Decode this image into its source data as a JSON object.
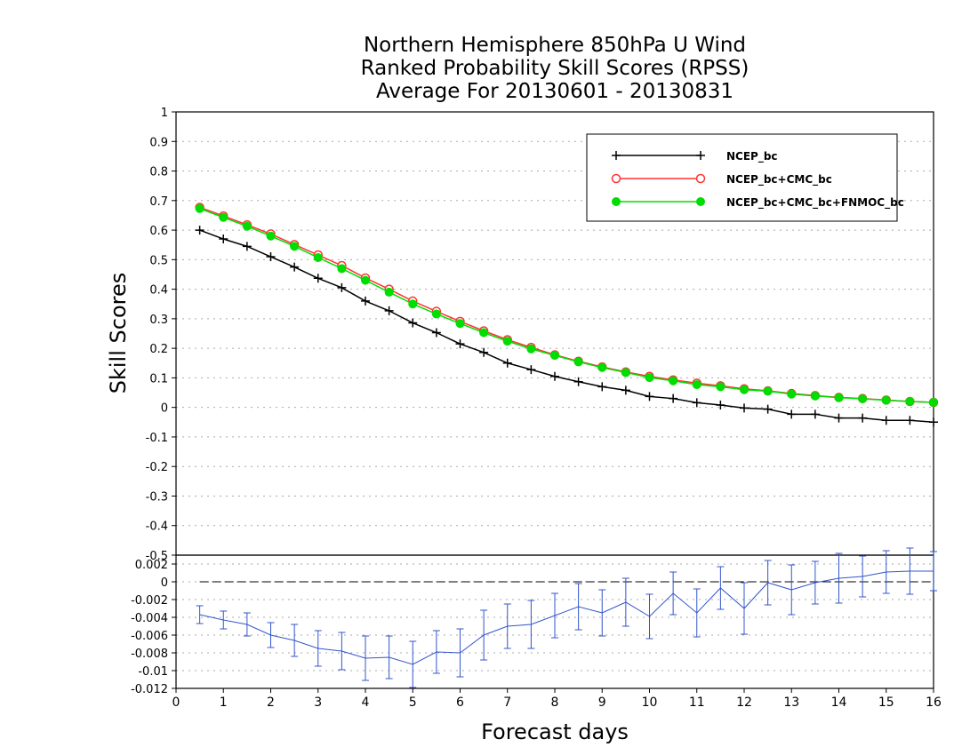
{
  "title": {
    "line1": "Northern Hemisphere 850hPa U Wind",
    "line2": "Ranked Probability Skill Scores (RPSS)",
    "line3": "Average For 20130601 - 20130831"
  },
  "xlabel": "Forecast days",
  "ylabel": "Skill Scores",
  "chart_data": [
    {
      "type": "line",
      "xlim": [
        0,
        16
      ],
      "ylim": [
        -0.5,
        1.0
      ],
      "x_ticks": [
        "0",
        "1",
        "2",
        "3",
        "4",
        "5",
        "6",
        "7",
        "8",
        "9",
        "10",
        "11",
        "12",
        "13",
        "14",
        "15",
        "16"
      ],
      "y_ticks": [
        "-0.5",
        "-0.4",
        "-0.3",
        "-0.2",
        "-0.1",
        "0",
        "0.1",
        "0.2",
        "0.3",
        "0.4",
        "0.5",
        "0.6",
        "0.7",
        "0.8",
        "0.9",
        "1"
      ],
      "grid": true,
      "legend_position": "top-right",
      "x": [
        0.5,
        1,
        1.5,
        2,
        2.5,
        3,
        3.5,
        4,
        4.5,
        5,
        5.5,
        6,
        6.5,
        7,
        7.5,
        8,
        8.5,
        9,
        9.5,
        10,
        10.5,
        11,
        11.5,
        12,
        12.5,
        13,
        13.5,
        14,
        14.5,
        15,
        15.5,
        16
      ],
      "series": [
        {
          "name": "NCEP_bc",
          "color": "#000000",
          "marker": "plus",
          "values": [
            0.6,
            0.57,
            0.545,
            0.51,
            0.475,
            0.437,
            0.405,
            0.36,
            0.327,
            0.286,
            0.253,
            0.215,
            0.186,
            0.15,
            0.128,
            0.105,
            0.087,
            0.07,
            0.058,
            0.037,
            0.03,
            0.016,
            0.008,
            -0.002,
            -0.006,
            -0.023,
            -0.023,
            -0.036,
            -0.036,
            -0.044,
            -0.044,
            -0.05
          ]
        },
        {
          "name": "NCEP_bc+CMC_bc",
          "color": "#ff3333",
          "marker": "open-circle",
          "values": [
            0.677,
            0.648,
            0.618,
            0.587,
            0.551,
            0.516,
            0.48,
            0.438,
            0.4,
            0.36,
            0.325,
            0.291,
            0.259,
            0.229,
            0.203,
            0.178,
            0.156,
            0.137,
            0.12,
            0.105,
            0.093,
            0.082,
            0.073,
            0.063,
            0.056,
            0.047,
            0.04,
            0.034,
            0.03,
            0.025,
            0.02,
            0.017
          ]
        },
        {
          "name": "NCEP_bc+CMC_bc+FNMOC_bc",
          "color": "#00dd00",
          "marker": "filled-circle",
          "values": [
            0.673,
            0.643,
            0.613,
            0.58,
            0.545,
            0.507,
            0.47,
            0.43,
            0.39,
            0.35,
            0.316,
            0.284,
            0.253,
            0.224,
            0.198,
            0.176,
            0.154,
            0.135,
            0.118,
            0.101,
            0.09,
            0.077,
            0.07,
            0.06,
            0.055,
            0.045,
            0.039,
            0.033,
            0.029,
            0.024,
            0.02,
            0.017
          ]
        }
      ]
    },
    {
      "type": "line",
      "xlim": [
        0,
        16
      ],
      "ylim": [
        -0.012,
        0.003
      ],
      "x_ticks": [
        "0",
        "1",
        "2",
        "3",
        "4",
        "5",
        "6",
        "7",
        "8",
        "9",
        "10",
        "11",
        "12",
        "13",
        "14",
        "15",
        "16"
      ],
      "y_ticks": [
        "-0.012",
        "-0.01",
        "-0.008",
        "-0.006",
        "-0.004",
        "-0.002",
        "0",
        "0.002"
      ],
      "grid": true,
      "reference_line": 0,
      "x": [
        0.5,
        1,
        1.5,
        2,
        2.5,
        3,
        3.5,
        4,
        4.5,
        5,
        5.5,
        6,
        6.5,
        7,
        7.5,
        8,
        8.5,
        9,
        9.5,
        10,
        10.5,
        11,
        11.5,
        12,
        12.5,
        13,
        13.5,
        14,
        14.5,
        15,
        15.5,
        16
      ],
      "series": [
        {
          "color": "#3355cc",
          "marker": "errorbar",
          "values": [
            -0.0037,
            -0.0043,
            -0.0048,
            -0.006,
            -0.0066,
            -0.0075,
            -0.0078,
            -0.0086,
            -0.0085,
            -0.0093,
            -0.0079,
            -0.008,
            -0.006,
            -0.005,
            -0.0048,
            -0.0038,
            -0.0028,
            -0.0035,
            -0.0023,
            -0.0039,
            -0.0013,
            -0.0035,
            -0.0007,
            -0.003,
            -0.0001,
            -0.0009,
            -0.0001,
            0.0004,
            0.0006,
            0.0011,
            0.0012,
            0.0012
          ],
          "error": [
            0.001,
            0.001,
            0.0013,
            0.0014,
            0.0018,
            0.002,
            0.0021,
            0.0025,
            0.0024,
            0.0026,
            0.0024,
            0.0027,
            0.0028,
            0.0025,
            0.0027,
            0.0025,
            0.0026,
            0.0026,
            0.0027,
            0.0025,
            0.0024,
            0.0027,
            0.0024,
            0.0029,
            0.0025,
            0.0028,
            0.0024,
            0.0028,
            0.0023,
            0.0024,
            0.0026,
            0.0022
          ]
        }
      ]
    }
  ]
}
